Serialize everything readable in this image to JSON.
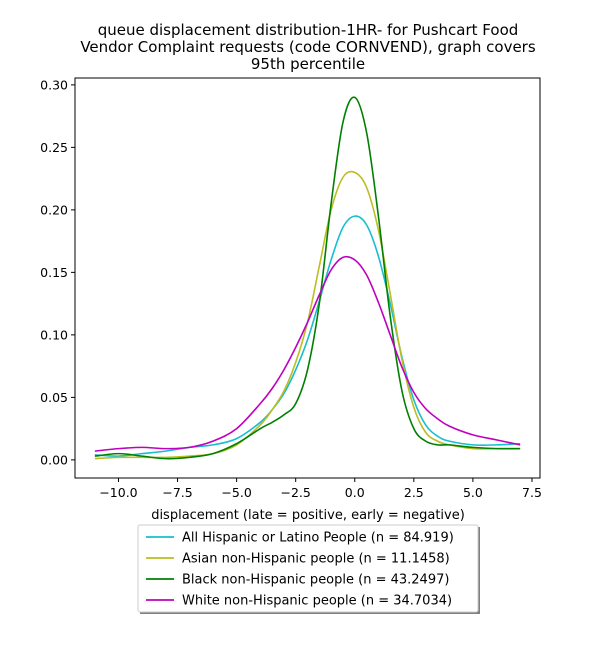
{
  "chart_data": {
    "type": "line",
    "title": "queue displacement distribution-1HR-  for Pushcart Food\nVendor Complaint  requests (code CORNVEND), graph covers\n95th percentile",
    "xlabel": "displacement (late = positive, early = negative)",
    "ylabel": "",
    "xlim": [
      -11.84,
      7.84
    ],
    "ylim": [
      -0.0145,
      0.3055
    ],
    "xticks": [
      -10.0,
      -7.5,
      -5.0,
      -2.5,
      0.0,
      2.5,
      5.0,
      7.5
    ],
    "xtick_labels": [
      "−10.0",
      "−7.5",
      "−5.0",
      "−2.5",
      "0.0",
      "2.5",
      "5.0",
      "7.5"
    ],
    "yticks": [
      0.0,
      0.05,
      0.1,
      0.15,
      0.2,
      0.25,
      0.3
    ],
    "ytick_labels": [
      "0.00",
      "0.05",
      "0.10",
      "0.15",
      "0.20",
      "0.25",
      "0.30"
    ],
    "grid": false,
    "legend_position": "below-center",
    "series": [
      {
        "name": "All Hispanic or Latino People (n = 84.919)",
        "color": "#17becf",
        "x": [
          -11,
          -10,
          -9,
          -8,
          -7,
          -6,
          -5,
          -4,
          -3.5,
          -3,
          -2.5,
          -2,
          -1.5,
          -1,
          -0.5,
          0,
          0.5,
          1,
          1.5,
          2,
          2.5,
          3,
          3.5,
          4,
          5,
          6,
          7
        ],
        "y": [
          0.004,
          0.003,
          0.005,
          0.007,
          0.01,
          0.012,
          0.017,
          0.03,
          0.04,
          0.053,
          0.072,
          0.096,
          0.127,
          0.16,
          0.186,
          0.195,
          0.188,
          0.163,
          0.125,
          0.082,
          0.048,
          0.028,
          0.019,
          0.015,
          0.012,
          0.012,
          0.013
        ]
      },
      {
        "name": "Asian non-Hispanic people (n = 11.1458)",
        "color": "#bcbd22",
        "x": [
          -11,
          -10,
          -9,
          -8,
          -7,
          -6,
          -5,
          -4,
          -3.5,
          -3,
          -2.5,
          -2,
          -1.5,
          -1,
          -0.5,
          0,
          0.5,
          1,
          1.5,
          2,
          2.5,
          3,
          3.5,
          4,
          5,
          6,
          7
        ],
        "y": [
          0.001,
          0.002,
          0.002,
          0.002,
          0.003,
          0.005,
          0.012,
          0.028,
          0.04,
          0.055,
          0.078,
          0.11,
          0.155,
          0.2,
          0.226,
          0.23,
          0.218,
          0.184,
          0.133,
          0.08,
          0.042,
          0.022,
          0.015,
          0.012,
          0.009,
          0.009,
          0.009
        ]
      },
      {
        "name": "Black non-Hispanic people (n = 43.2497)",
        "color": "#008000",
        "x": [
          -11,
          -10,
          -9,
          -8,
          -7,
          -6,
          -5,
          -4,
          -3.5,
          -3,
          -2.5,
          -2,
          -1.5,
          -1,
          -0.5,
          0,
          0.5,
          1,
          1.5,
          2,
          2.5,
          3,
          3.5,
          4,
          5,
          6,
          7
        ],
        "y": [
          0.003,
          0.005,
          0.003,
          0.001,
          0.002,
          0.005,
          0.013,
          0.025,
          0.03,
          0.036,
          0.045,
          0.072,
          0.125,
          0.205,
          0.27,
          0.29,
          0.262,
          0.195,
          0.115,
          0.055,
          0.025,
          0.015,
          0.012,
          0.012,
          0.01,
          0.009,
          0.009
        ]
      },
      {
        "name": "White non-Hispanic people (n = 34.7034)",
        "color": "#bf00bf",
        "x": [
          -11,
          -10,
          -9,
          -8,
          -7,
          -6,
          -5,
          -4,
          -3.5,
          -3,
          -2.5,
          -2,
          -1.5,
          -1,
          -0.5,
          0,
          0.5,
          1,
          1.5,
          2,
          2.5,
          3,
          3.5,
          4,
          5,
          6,
          7
        ],
        "y": [
          0.007,
          0.009,
          0.01,
          0.009,
          0.01,
          0.015,
          0.025,
          0.045,
          0.057,
          0.072,
          0.09,
          0.11,
          0.132,
          0.152,
          0.162,
          0.16,
          0.148,
          0.126,
          0.1,
          0.074,
          0.054,
          0.041,
          0.033,
          0.027,
          0.02,
          0.016,
          0.012
        ]
      }
    ]
  }
}
